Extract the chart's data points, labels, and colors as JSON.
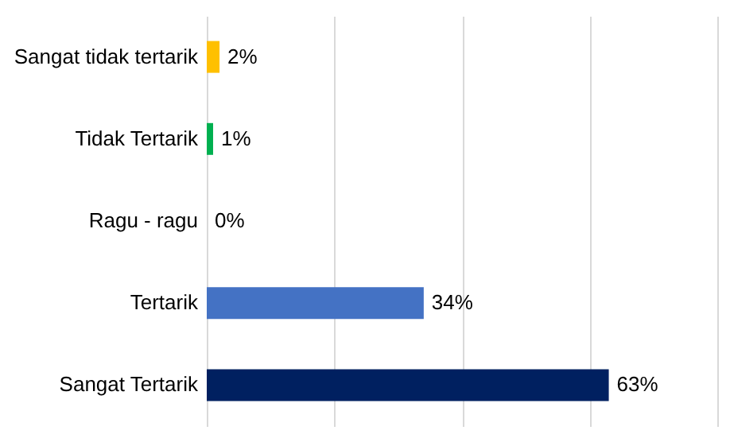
{
  "chart_data": {
    "type": "bar",
    "orientation": "horizontal",
    "categories": [
      "Sangat tidak tertarik",
      "Tidak Tertarik",
      "Ragu - ragu",
      "Tertarik",
      "Sangat Tertarik"
    ],
    "values": [
      2,
      1,
      0,
      34,
      63
    ],
    "colors": [
      "#ffc000",
      "#00b050",
      "#a5a5a5",
      "#4472c4",
      "#002060"
    ],
    "value_labels": [
      "2%",
      "1%",
      "0%",
      "34%",
      "63%"
    ],
    "xlim": [
      0,
      80
    ],
    "xticks": [
      {
        "value": 0,
        "label": null
      },
      {
        "value": 20,
        "label": null
      },
      {
        "value": 40,
        "label": null
      },
      {
        "value": 60,
        "label": null
      },
      {
        "value": 80,
        "label": null
      }
    ],
    "grid": "x",
    "tick_labels": "y"
  }
}
